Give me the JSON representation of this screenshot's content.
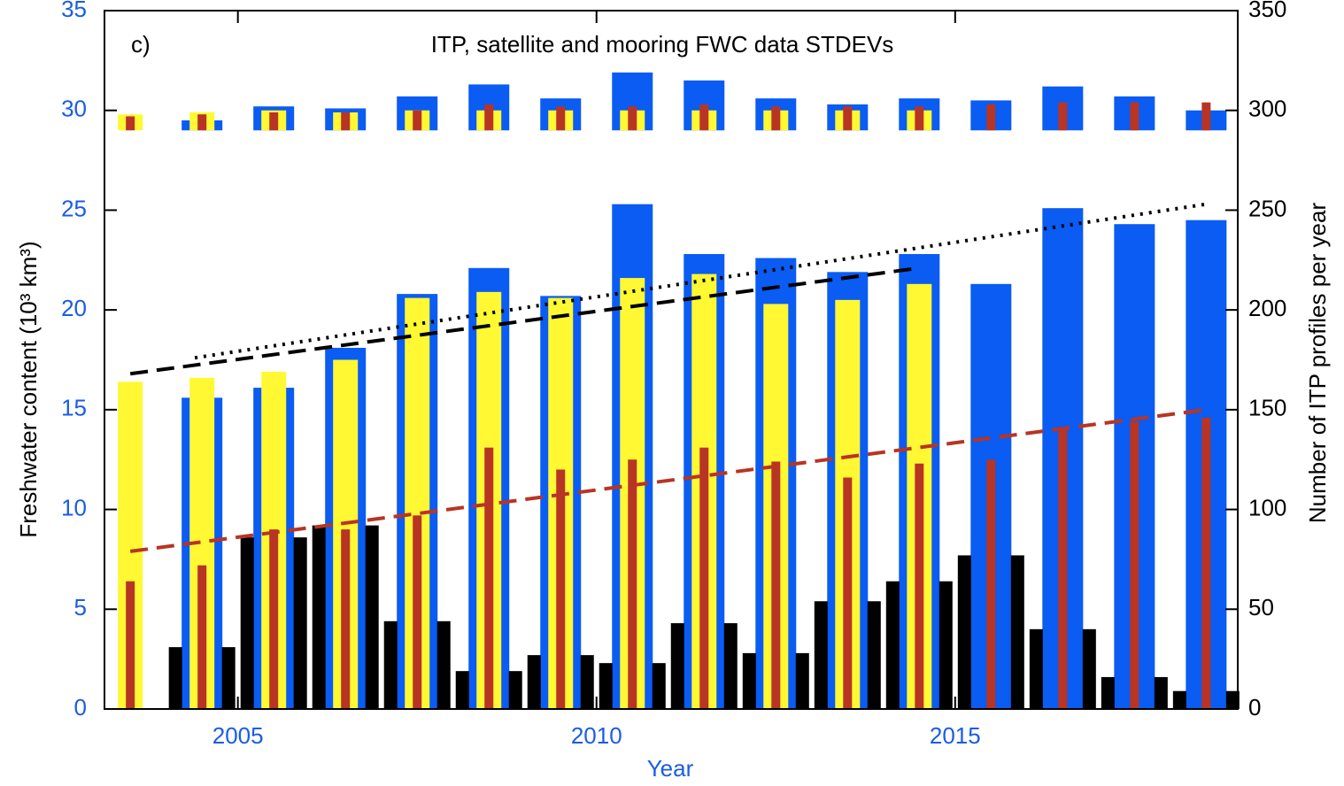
{
  "chart_data": {
    "type": "bar",
    "title": "ITP, satellite and mooring FWC data STDEVs",
    "panel_label": "c)",
    "xlabel": "Year",
    "ylabel": "Freshwater content (10³ km³)",
    "y2label": "Number of ITP profiles per year",
    "x": [
      2003.5,
      2004.5,
      2005.5,
      2006.5,
      2007.5,
      2008.5,
      2009.5,
      2010.5,
      2011.5,
      2012.5,
      2013.5,
      2014.5,
      2015.5,
      2016.5,
      2017.5,
      2018.5
    ],
    "xlim": [
      2003.14,
      2018.94
    ],
    "xticks": [
      2005,
      2010,
      2015
    ],
    "ylim": [
      0,
      35
    ],
    "yticks": [
      0,
      5,
      10,
      15,
      20,
      25,
      30,
      35
    ],
    "y2lim": [
      0,
      350
    ],
    "y2ticks": [
      0,
      50,
      100,
      150,
      200,
      250,
      300,
      350
    ],
    "series": [
      {
        "color": "#0a5cf2",
        "values": [
          null,
          15.6,
          16.1,
          18.1,
          20.8,
          22.1,
          20.7,
          25.3,
          22.8,
          22.6,
          21.9,
          22.8,
          21.3,
          25.1,
          24.3,
          24.5
        ]
      },
      {
        "color": "#fff833",
        "values": [
          16.4,
          16.6,
          16.9,
          17.5,
          20.6,
          20.9,
          20.6,
          21.6,
          21.8,
          20.3,
          20.5,
          21.3,
          null,
          null,
          null,
          null
        ]
      },
      {
        "color": "#b83424",
        "values": [
          6.4,
          7.2,
          9.0,
          9.0,
          9.7,
          13.1,
          12.0,
          12.5,
          13.1,
          12.4,
          11.6,
          12.3,
          12.5,
          14.0,
          14.4,
          14.6
        ]
      },
      {
        "color": "#000000",
        "axis": "y2",
        "values": [
          null,
          31,
          86,
          92,
          44,
          19,
          27,
          23,
          43,
          28,
          54,
          64,
          77,
          40,
          16,
          9
        ]
      }
    ],
    "stdev_baseline": 29,
    "stdev_series": [
      {
        "color": "#0a5cf2",
        "values": [
          null,
          29.5,
          30.2,
          30.1,
          30.7,
          31.3,
          30.6,
          31.9,
          31.5,
          30.6,
          30.3,
          30.6,
          30.5,
          31.2,
          30.7,
          30.0
        ]
      },
      {
        "color": "#fff833",
        "values": [
          29.8,
          29.9,
          30.0,
          29.9,
          30.0,
          30.0,
          30.0,
          30.0,
          30.0,
          30.0,
          30.0,
          30.0,
          null,
          null,
          null,
          null
        ]
      },
      {
        "color": "#b83424",
        "values": [
          29.7,
          29.8,
          29.9,
          29.9,
          30.0,
          30.3,
          30.2,
          30.2,
          30.3,
          30.2,
          30.2,
          30.2,
          30.3,
          30.4,
          30.4,
          30.4
        ]
      }
    ],
    "trend_lines": [
      {
        "color": "#000000",
        "style": "dashed",
        "x": [
          2003.5,
          2014.5
        ],
        "values": [
          16.8,
          22.1
        ]
      },
      {
        "color": "#000000",
        "style": "dotted",
        "x": [
          2004.4,
          2018.5
        ],
        "values": [
          17.6,
          25.3
        ]
      },
      {
        "color": "#b83424",
        "style": "dashed",
        "x": [
          2003.5,
          2018.5
        ],
        "values": [
          7.9,
          15.0
        ]
      }
    ]
  }
}
